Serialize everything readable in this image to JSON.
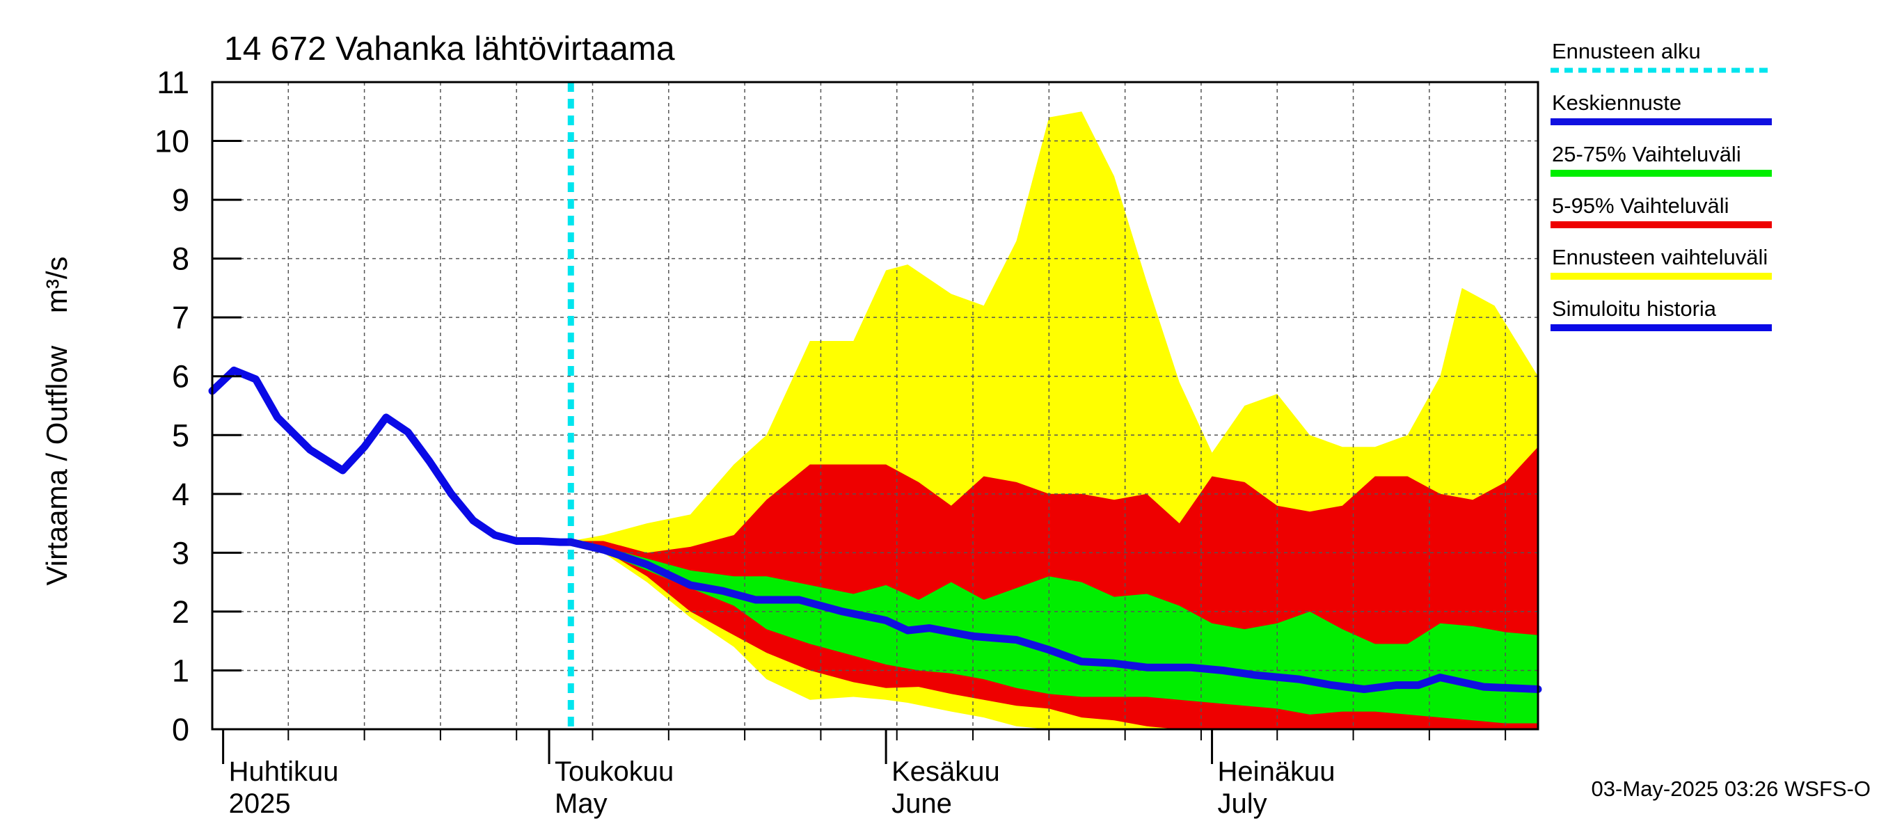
{
  "chart_data": {
    "type": "area",
    "title": "14 672 Vahanka lähtövirtaama",
    "ylabel": "Virtaama / Outflow    m³/s",
    "ylim": [
      0,
      11
    ],
    "yticks": [
      "0",
      "1",
      "2",
      "3",
      "4",
      "5",
      "6",
      "7",
      "8",
      "9",
      "10",
      "11"
    ],
    "xlim": [
      "2025-03-31",
      "2025-07-31"
    ],
    "grid": true,
    "month_labels": [
      {
        "fi": "Huhtikuu",
        "en": "2025",
        "date": "2025-04-01"
      },
      {
        "fi": "Toukokuu",
        "en": "May",
        "date": "2025-05-01"
      },
      {
        "fi": "Kesäkuu",
        "en": "June",
        "date": "2025-06-01"
      },
      {
        "fi": "Heinäkuu",
        "en": "July",
        "date": "2025-07-01"
      }
    ],
    "forecast_start": "2025-05-03",
    "legend_position": "right",
    "legend": [
      {
        "label": "Ennusteen alku",
        "color": "#00e5ee",
        "style": "dashed"
      },
      {
        "label": "Keskiennuste",
        "color": "#1010e0",
        "style": "line"
      },
      {
        "label": "25-75% Vaihteluväli",
        "color": "#00ee00",
        "style": "band"
      },
      {
        "label": "5-95% Vaihteluväli",
        "color": "#ee0000",
        "style": "band"
      },
      {
        "label": "Ennusteen vaihteluväli",
        "color": "#ffff00",
        "style": "band"
      },
      {
        "label": "Simuloitu historia",
        "color": "#0a0ae6",
        "style": "line"
      }
    ],
    "history": {
      "name": "Simuloitu historia",
      "x": [
        "2025-03-31",
        "2025-04-02",
        "2025-04-04",
        "2025-04-06",
        "2025-04-09",
        "2025-04-12",
        "2025-04-14",
        "2025-04-16",
        "2025-04-18",
        "2025-04-20",
        "2025-04-22",
        "2025-04-24",
        "2025-04-26",
        "2025-04-28",
        "2025-04-30",
        "2025-05-02",
        "2025-05-03"
      ],
      "values": [
        5.75,
        6.1,
        5.95,
        5.3,
        4.75,
        4.4,
        4.8,
        5.3,
        5.05,
        4.55,
        4.0,
        3.55,
        3.3,
        3.2,
        3.2,
        3.18,
        3.18
      ]
    },
    "series": [
      {
        "name": "Keskiennuste",
        "x": [
          "2025-05-03",
          "2025-05-06",
          "2025-05-10",
          "2025-05-14",
          "2025-05-17",
          "2025-05-20",
          "2025-05-24",
          "2025-05-28",
          "2025-06-01",
          "2025-06-03",
          "2025-06-05",
          "2025-06-09",
          "2025-06-13",
          "2025-06-16",
          "2025-06-19",
          "2025-06-22",
          "2025-06-25",
          "2025-06-29",
          "2025-07-02",
          "2025-07-05",
          "2025-07-09",
          "2025-07-12",
          "2025-07-15",
          "2025-07-18",
          "2025-07-20",
          "2025-07-22",
          "2025-07-26",
          "2025-07-31"
        ],
        "values": [
          3.18,
          3.05,
          2.8,
          2.45,
          2.35,
          2.2,
          2.2,
          2.0,
          1.85,
          1.68,
          1.72,
          1.58,
          1.52,
          1.35,
          1.15,
          1.12,
          1.05,
          1.05,
          1.0,
          0.92,
          0.85,
          0.75,
          0.68,
          0.75,
          0.75,
          0.88,
          0.72,
          0.68
        ]
      }
    ],
    "bands": [
      {
        "name": "Ennusteen vaihteluväli",
        "x": [
          "2025-05-03",
          "2025-05-06",
          "2025-05-10",
          "2025-05-14",
          "2025-05-18",
          "2025-05-21",
          "2025-05-25",
          "2025-05-29",
          "2025-06-01",
          "2025-06-03",
          "2025-06-07",
          "2025-06-10",
          "2025-06-13",
          "2025-06-16",
          "2025-06-19",
          "2025-06-22",
          "2025-06-25",
          "2025-06-28",
          "2025-07-01",
          "2025-07-04",
          "2025-07-07",
          "2025-07-10",
          "2025-07-13",
          "2025-07-16",
          "2025-07-19",
          "2025-07-22",
          "2025-07-24",
          "2025-07-27",
          "2025-07-31"
        ],
        "upper": [
          3.2,
          3.3,
          3.5,
          3.65,
          4.5,
          5.0,
          6.6,
          6.6,
          7.8,
          7.9,
          7.4,
          7.2,
          8.3,
          10.4,
          10.5,
          9.4,
          7.6,
          5.9,
          4.7,
          5.5,
          5.7,
          5.0,
          4.8,
          4.8,
          5.0,
          6.0,
          7.5,
          7.2,
          6.0
        ],
        "lower": [
          3.15,
          3.0,
          2.5,
          1.9,
          1.4,
          0.85,
          0.5,
          0.55,
          0.5,
          0.45,
          0.3,
          0.2,
          0.05,
          0.0,
          0.0,
          0.0,
          0.0,
          0.0,
          0.0,
          0.0,
          0.0,
          0.0,
          0.0,
          0.0,
          0.0,
          0.0,
          0.0,
          0.0,
          0.0
        ]
      },
      {
        "name": "5-95% Vaihteluväli",
        "x": [
          "2025-05-03",
          "2025-05-06",
          "2025-05-10",
          "2025-05-14",
          "2025-05-18",
          "2025-05-21",
          "2025-05-25",
          "2025-05-29",
          "2025-06-01",
          "2025-06-04",
          "2025-06-07",
          "2025-06-10",
          "2025-06-13",
          "2025-06-16",
          "2025-06-19",
          "2025-06-22",
          "2025-06-25",
          "2025-06-28",
          "2025-07-01",
          "2025-07-04",
          "2025-07-07",
          "2025-07-10",
          "2025-07-13",
          "2025-07-16",
          "2025-07-19",
          "2025-07-22",
          "2025-07-25",
          "2025-07-28",
          "2025-07-31"
        ],
        "upper": [
          3.2,
          3.2,
          3.0,
          3.1,
          3.3,
          3.9,
          4.5,
          4.5,
          4.5,
          4.2,
          3.8,
          4.3,
          4.2,
          4.0,
          4.0,
          3.9,
          4.0,
          3.5,
          4.3,
          4.2,
          3.8,
          3.7,
          3.8,
          4.3,
          4.3,
          4.0,
          3.9,
          4.2,
          4.8
        ],
        "lower": [
          3.15,
          3.05,
          2.6,
          2.0,
          1.6,
          1.3,
          1.0,
          0.8,
          0.7,
          0.72,
          0.6,
          0.5,
          0.4,
          0.35,
          0.2,
          0.15,
          0.05,
          0.0,
          0.0,
          0.0,
          0.0,
          0.0,
          0.0,
          0.0,
          0.0,
          0.0,
          0.0,
          0.0,
          0.0
        ]
      },
      {
        "name": "25-75% Vaihteluväli",
        "x": [
          "2025-05-03",
          "2025-05-06",
          "2025-05-10",
          "2025-05-14",
          "2025-05-18",
          "2025-05-21",
          "2025-05-25",
          "2025-05-29",
          "2025-06-01",
          "2025-06-04",
          "2025-06-07",
          "2025-06-10",
          "2025-06-13",
          "2025-06-16",
          "2025-06-19",
          "2025-06-22",
          "2025-06-25",
          "2025-06-28",
          "2025-07-01",
          "2025-07-04",
          "2025-07-07",
          "2025-07-10",
          "2025-07-13",
          "2025-07-16",
          "2025-07-19",
          "2025-07-22",
          "2025-07-25",
          "2025-07-28",
          "2025-07-31"
        ],
        "upper": [
          3.18,
          3.1,
          2.9,
          2.7,
          2.6,
          2.6,
          2.45,
          2.3,
          2.45,
          2.2,
          2.5,
          2.2,
          2.4,
          2.6,
          2.5,
          2.25,
          2.3,
          2.1,
          1.8,
          1.7,
          1.8,
          2.0,
          1.7,
          1.45,
          1.45,
          1.8,
          1.75,
          1.65,
          1.6
        ],
        "lower": [
          3.15,
          3.0,
          2.7,
          2.4,
          2.1,
          1.7,
          1.45,
          1.25,
          1.1,
          1.0,
          0.95,
          0.85,
          0.7,
          0.6,
          0.55,
          0.55,
          0.55,
          0.5,
          0.45,
          0.4,
          0.35,
          0.25,
          0.3,
          0.3,
          0.25,
          0.2,
          0.15,
          0.1,
          0.1
        ]
      }
    ],
    "footer": "03-May-2025 03:26 WSFS-O"
  }
}
